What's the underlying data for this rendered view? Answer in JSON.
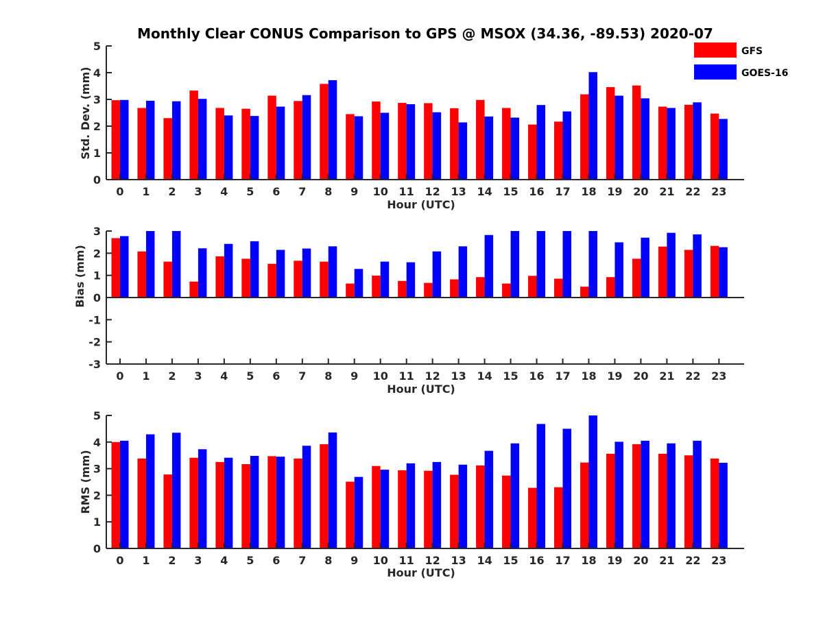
{
  "title": "Monthly Clear CONUS Comparison to GPS @ MSOX (34.36, -89.53) 2020-07",
  "legend": [
    {
      "name": "GFS",
      "color": "#ff0000"
    },
    {
      "name": "GOES-16",
      "color": "#0000ff"
    }
  ],
  "chart_data": [
    {
      "type": "bar",
      "xlabel": "Hour (UTC)",
      "ylabel": "Std. Dev. (mm)",
      "ylim": [
        0,
        5
      ],
      "yticks": [
        "0",
        "1",
        "2",
        "3",
        "4",
        "5"
      ],
      "categories": [
        "0",
        "1",
        "2",
        "3",
        "4",
        "5",
        "6",
        "7",
        "8",
        "9",
        "10",
        "11",
        "12",
        "13",
        "14",
        "15",
        "16",
        "17",
        "18",
        "19",
        "20",
        "21",
        "22",
        "23"
      ],
      "series": [
        {
          "name": "GFS",
          "color": "#ff0000",
          "values": [
            2.97,
            2.68,
            2.3,
            3.33,
            2.68,
            2.65,
            3.14,
            2.94,
            3.58,
            2.45,
            2.92,
            2.87,
            2.86,
            2.67,
            2.98,
            2.68,
            2.06,
            2.17,
            3.19,
            3.46,
            3.52,
            2.73,
            2.8,
            2.47
          ]
        },
        {
          "name": "GOES-16",
          "color": "#0000ff",
          "values": [
            2.98,
            2.95,
            2.93,
            3.02,
            2.4,
            2.38,
            2.73,
            3.16,
            3.72,
            2.37,
            2.5,
            2.82,
            2.52,
            2.14,
            2.36,
            2.32,
            2.79,
            2.55,
            4.02,
            3.14,
            3.04,
            2.68,
            2.89,
            2.27
          ]
        }
      ]
    },
    {
      "type": "bar",
      "xlabel": "Hour (UTC)",
      "ylabel": "Bias (mm)",
      "ylim": [
        -3,
        3
      ],
      "yticks": [
        "-3",
        "-2",
        "-1",
        "0",
        "1",
        "2",
        "3"
      ],
      "categories": [
        "0",
        "1",
        "2",
        "3",
        "4",
        "5",
        "6",
        "7",
        "8",
        "9",
        "10",
        "11",
        "12",
        "13",
        "14",
        "15",
        "16",
        "17",
        "18",
        "19",
        "20",
        "21",
        "22",
        "23"
      ],
      "series": [
        {
          "name": "GFS",
          "color": "#ff0000",
          "values": [
            2.68,
            2.08,
            1.62,
            0.72,
            1.86,
            1.75,
            1.52,
            1.66,
            1.62,
            0.63,
            0.99,
            0.75,
            0.66,
            0.82,
            0.92,
            0.63,
            0.98,
            0.85,
            0.49,
            0.92,
            1.75,
            2.3,
            2.15,
            2.33
          ]
        },
        {
          "name": "GOES-16",
          "color": "#0000ff",
          "values": [
            2.77,
            3.0,
            3.0,
            2.22,
            2.42,
            2.54,
            2.15,
            2.21,
            2.31,
            1.29,
            1.62,
            1.59,
            2.08,
            2.31,
            2.82,
            3.0,
            3.0,
            3.0,
            3.0,
            2.49,
            2.7,
            2.92,
            2.85,
            2.27
          ]
        }
      ]
    },
    {
      "type": "bar",
      "xlabel": "Hour (UTC)",
      "ylabel": "RMS (mm)",
      "ylim": [
        0,
        5
      ],
      "yticks": [
        "0",
        "1",
        "2",
        "3",
        "4",
        "5"
      ],
      "categories": [
        "0",
        "1",
        "2",
        "3",
        "4",
        "5",
        "6",
        "7",
        "8",
        "9",
        "10",
        "11",
        "12",
        "13",
        "14",
        "15",
        "16",
        "17",
        "18",
        "19",
        "20",
        "21",
        "22",
        "23"
      ],
      "series": [
        {
          "name": "GFS",
          "color": "#ff0000",
          "values": [
            4.0,
            3.38,
            2.78,
            3.41,
            3.25,
            3.17,
            3.47,
            3.38,
            3.92,
            2.51,
            3.1,
            2.94,
            2.92,
            2.77,
            3.12,
            2.74,
            2.28,
            2.3,
            3.23,
            3.56,
            3.92,
            3.56,
            3.5,
            3.38
          ]
        },
        {
          "name": "GOES-16",
          "color": "#0000ff",
          "values": [
            4.05,
            4.29,
            4.35,
            3.73,
            3.41,
            3.48,
            3.45,
            3.86,
            4.36,
            2.69,
            2.96,
            3.2,
            3.25,
            3.15,
            3.67,
            3.95,
            4.68,
            4.5,
            5.0,
            4.01,
            4.05,
            3.95,
            4.05,
            3.22
          ]
        }
      ]
    }
  ]
}
